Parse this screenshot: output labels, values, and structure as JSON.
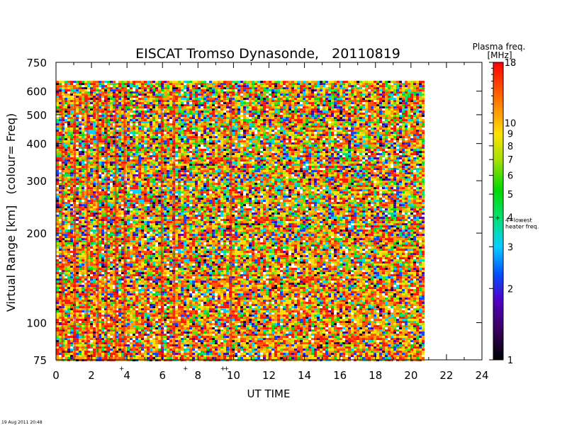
{
  "chart_data": {
    "type": "heatmap",
    "title": "EISCAT Tromso Dynasonde,   20110819",
    "xlabel": "UT TIME",
    "ylabel": "Virtual Range [km]   (colour= Freq)",
    "x_ticks": [
      0,
      2,
      4,
      6,
      8,
      10,
      12,
      14,
      16,
      18,
      20,
      22,
      24
    ],
    "xlim": [
      0,
      24
    ],
    "y_scale": "log",
    "ylim": [
      75,
      750
    ],
    "y_ticks": [
      75,
      100,
      200,
      300,
      400,
      500,
      600,
      750
    ],
    "data_x_range": [
      0,
      20.7
    ],
    "data_y_range": [
      75,
      650
    ],
    "colorbar": {
      "title": "Plasma freq.",
      "unit": "[MHz]",
      "scale": "log",
      "range": [
        1,
        18
      ],
      "ticks": [
        1,
        2,
        3,
        4,
        5,
        6,
        7,
        8,
        9,
        10,
        18
      ],
      "annotation_at": 4,
      "annotation_lines": [
        "4=lowest",
        "heater freq."
      ],
      "stops": [
        {
          "value": 1,
          "color": "#000000"
        },
        {
          "value": 1.35,
          "color": "#3a0060"
        },
        {
          "value": 1.8,
          "color": "#5000c8"
        },
        {
          "value": 2.3,
          "color": "#0050ff"
        },
        {
          "value": 3.0,
          "color": "#00d0ff"
        },
        {
          "value": 4.0,
          "color": "#00e070"
        },
        {
          "value": 5.2,
          "color": "#00d800"
        },
        {
          "value": 7.0,
          "color": "#a8e000"
        },
        {
          "value": 9.0,
          "color": "#ffe000"
        },
        {
          "value": 12.0,
          "color": "#ff8000"
        },
        {
          "value": 18.0,
          "color": "#ff0000"
        }
      ]
    },
    "x_markers": [
      3.7,
      7.3,
      9.4,
      9.6
    ],
    "timestamp": "19 Aug 2011 20:48"
  }
}
